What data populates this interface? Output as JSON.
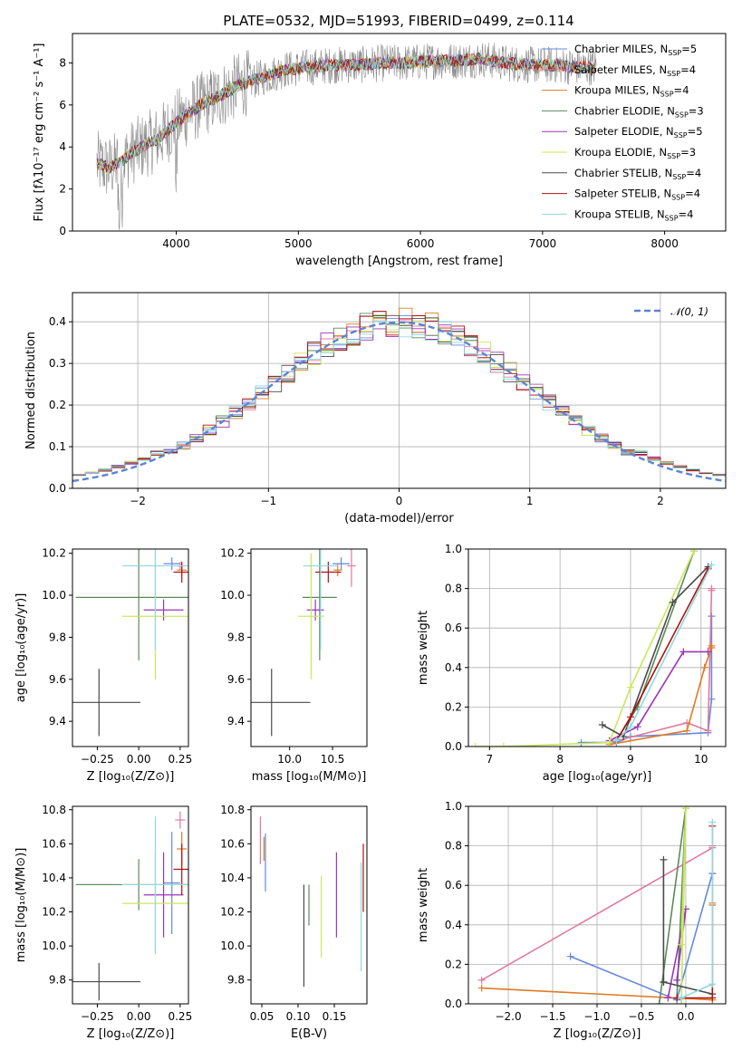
{
  "figure": {
    "title": "PLATE=0532, MJD=51993, FIBERID=0499, z=0.114"
  },
  "colors": {
    "models": [
      "#6688dd",
      "#e07a9c",
      "#e07b22",
      "#5a8a5a",
      "#9a35b8",
      "#c8e85a",
      "#4a4a4a",
      "#b01010",
      "#8fd8e0"
    ],
    "model_keys": [
      "chabrier_miles",
      "salpeter_miles",
      "kroupa_miles",
      "chabrier_elodie",
      "salpeter_elodie",
      "kroupa_elodie",
      "chabrier_stelib",
      "salpeter_stelib",
      "kroupa_stelib"
    ]
  },
  "chart_data": [
    {
      "id": "spectrum",
      "type": "line",
      "xlabel": "wavelength [Angstrom, rest frame]",
      "ylabel": "Flux [fλ10⁻¹⁷ erg cm⁻² s⁻¹ A⁻¹]",
      "xlim": [
        3150,
        8500
      ],
      "ylim": [
        0,
        9.4
      ],
      "xticks": [
        "4000",
        "5000",
        "6000",
        "7000",
        "8000"
      ],
      "yticks": [
        "0",
        "2",
        "4",
        "6",
        "8"
      ],
      "x": [
        3350,
        3450,
        3550,
        3650,
        3750,
        3850,
        3950,
        4050,
        4200,
        4350,
        4500,
        4700,
        4900,
        5100,
        5300,
        5500,
        5700,
        5900,
        6100,
        6300,
        6500,
        6700,
        6900,
        7100,
        7300,
        7400
      ],
      "y": [
        3.2,
        3.0,
        3.3,
        3.8,
        4.1,
        4.4,
        4.9,
        5.4,
        6.0,
        6.4,
        6.9,
        7.3,
        7.7,
        7.8,
        7.9,
        7.9,
        8.0,
        8.0,
        8.1,
        8.1,
        8.2,
        8.0,
        7.9,
        7.9,
        7.8,
        7.8
      ],
      "legend": [
        {
          "name": "Chabrier MILES",
          "nssp": "5"
        },
        {
          "name": "Salpeter MILES",
          "nssp": "4"
        },
        {
          "name": "Kroupa MILES",
          "nssp": "4"
        },
        {
          "name": "Chabrier ELODIE",
          "nssp": "3"
        },
        {
          "name": "Salpeter ELODIE",
          "nssp": "5"
        },
        {
          "name": "Kroupa ELODIE",
          "nssp": "3"
        },
        {
          "name": "Chabrier STELIB",
          "nssp": "4"
        },
        {
          "name": "Salpeter STELIB",
          "nssp": "4"
        },
        {
          "name": "Kroupa STELIB",
          "nssp": "4"
        }
      ],
      "legend_prefix": "N",
      "legend_sub": "SSP",
      "legend_placement": "right"
    },
    {
      "id": "residuals",
      "type": "bar",
      "xlabel": "(data-model)/error",
      "ylabel": "Normed distribution",
      "xlim": [
        -2.5,
        2.5
      ],
      "ylim": [
        0,
        0.47
      ],
      "xticks": [
        "−2",
        "−1",
        "0",
        "1",
        "2"
      ],
      "yticks": [
        "0.0",
        "0.1",
        "0.2",
        "0.3",
        "0.4"
      ],
      "reference_label": "𝒩(0, 1)",
      "reference_mean": 0,
      "reference_sigma": 1,
      "grid": true,
      "legend_placement": "top-right"
    },
    {
      "id": "age_vs_Z",
      "type": "scatter",
      "xlabel": "Z [log₁₀(Z/Z⊙)]",
      "ylabel": "age  [log₁₀(age/yr)]",
      "xlim": [
        -0.4,
        0.3
      ],
      "ylim": [
        9.28,
        10.22
      ],
      "xticks": [
        "−0.25",
        "0.00",
        "0.25"
      ],
      "yticks": [
        "9.4",
        "9.6",
        "9.8",
        "10.0",
        "10.2"
      ],
      "points": [
        {
          "x": 0.2,
          "y": 10.15,
          "xerr": 0.05,
          "yerr": 0.03
        },
        {
          "x": 0.25,
          "y": 10.14,
          "xerr": 0.03,
          "yerr": 0.02
        },
        {
          "x": 0.26,
          "y": 10.12,
          "xerr": 0.03,
          "yerr": 0.03
        },
        {
          "x": 0.0,
          "y": 9.99,
          "xerr": 0.38,
          "yerr": 0.3
        },
        {
          "x": 0.15,
          "y": 9.93,
          "xerr": 0.12,
          "yerr": 0.05
        },
        {
          "x": 0.1,
          "y": 9.9,
          "xerr": 0.2,
          "yerr": 0.3
        },
        {
          "x": -0.24,
          "y": 9.49,
          "xerr": 0.25,
          "yerr": 0.16
        },
        {
          "x": 0.26,
          "y": 10.11,
          "xerr": 0.05,
          "yerr": 0.05
        },
        {
          "x": 0.1,
          "y": 10.14,
          "xerr": 0.2,
          "yerr": 0.4
        }
      ]
    },
    {
      "id": "age_vs_mass",
      "type": "scatter",
      "xlabel": "mass [log₁₀(M/M⊙)]",
      "ylabel": "",
      "xlim": [
        9.55,
        10.9
      ],
      "ylim": [
        9.28,
        10.22
      ],
      "xticks": [
        "10.0",
        "10.5"
      ],
      "yticks": [
        "9.4",
        "9.6",
        "9.8",
        "10.0",
        "10.2"
      ],
      "points": [
        {
          "x": 10.6,
          "y": 10.15,
          "xerr": 0.1,
          "yerr": 0.03
        },
        {
          "x": 10.72,
          "y": 10.14,
          "xerr": 0.05,
          "yerr": 0.1
        },
        {
          "x": 10.56,
          "y": 10.12,
          "xerr": 0.05,
          "yerr": 0.03
        },
        {
          "x": 10.35,
          "y": 9.99,
          "xerr": 0.2,
          "yerr": 0.3
        },
        {
          "x": 10.3,
          "y": 9.93,
          "xerr": 0.1,
          "yerr": 0.05
        },
        {
          "x": 10.25,
          "y": 9.9,
          "xerr": 0.15,
          "yerr": 0.3
        },
        {
          "x": 9.79,
          "y": 9.49,
          "xerr": 0.45,
          "yerr": 0.16
        },
        {
          "x": 10.45,
          "y": 10.11,
          "xerr": 0.15,
          "yerr": 0.05
        },
        {
          "x": 10.36,
          "y": 10.14,
          "xerr": 0.2,
          "yerr": 0.4
        }
      ]
    },
    {
      "id": "weight_vs_age",
      "type": "line",
      "xlabel": "age  [log₁₀(age/yr)]",
      "ylabel": "mass weight",
      "xlim": [
        6.7,
        10.35
      ],
      "ylim": [
        0,
        1
      ],
      "xticks": [
        "7",
        "8",
        "9",
        "10"
      ],
      "yticks": [
        "0.0",
        "0.2",
        "0.4",
        "0.6",
        "0.8",
        "1.0"
      ],
      "grid": true,
      "series": [
        {
          "x": [
            8.3,
            8.8,
            9.0,
            10.1,
            10.15,
            10.15
          ],
          "y": [
            0.02,
            0.02,
            0.05,
            0.07,
            0.24,
            0.66
          ]
        },
        {
          "x": [
            8.7,
            9.8,
            10.1,
            10.15,
            10.15
          ],
          "y": [
            0.02,
            0.12,
            0.08,
            0.79,
            0.8
          ]
        },
        {
          "x": [
            8.7,
            9.8,
            10.05,
            10.15,
            10.15
          ],
          "y": [
            0.01,
            0.08,
            0.4,
            0.5,
            0.51
          ]
        },
        {
          "x": [
            8.8,
            9.1,
            9.9
          ],
          "y": [
            0.03,
            0.2,
            0.99
          ]
        },
        {
          "x": [
            8.7,
            9.1,
            9.75,
            10.1
          ],
          "y": [
            0.03,
            0.1,
            0.48,
            0.48
          ]
        },
        {
          "x": [
            6.8,
            7.2,
            8.7,
            9.0,
            9.9
          ],
          "y": [
            0.0,
            0.0,
            0.02,
            0.3,
            0.99
          ]
        },
        {
          "x": [
            8.6,
            8.9,
            9.6,
            10.1
          ],
          "y": [
            0.11,
            0.05,
            0.73,
            0.91
          ]
        },
        {
          "x": [
            8.8,
            9.0,
            10.1
          ],
          "y": [
            0.03,
            0.15,
            0.9
          ]
        },
        {
          "x": [
            8.8,
            9.0,
            10.15
          ],
          "y": [
            0.03,
            0.1,
            0.92
          ]
        }
      ]
    },
    {
      "id": "mass_vs_Z",
      "type": "scatter",
      "xlabel": "Z [log₁₀(Z/Z⊙)]",
      "ylabel": "mass [log₁₀(M/M⊙)]",
      "xlim": [
        -0.4,
        0.3
      ],
      "ylim": [
        9.66,
        10.82
      ],
      "xticks": [
        "−0.25",
        "0.00",
        "0.25"
      ],
      "yticks": [
        "9.8",
        "10.0",
        "10.2",
        "10.4",
        "10.6",
        "10.8"
      ],
      "points": [
        {
          "x": 0.2,
          "y": 10.37,
          "xerr": 0.05,
          "yerr": 0.3
        },
        {
          "x": 0.25,
          "y": 10.74,
          "xerr": 0.03,
          "yerr": 0.05
        },
        {
          "x": 0.26,
          "y": 10.57,
          "xerr": 0.03,
          "yerr": 0.1
        },
        {
          "x": 0.0,
          "y": 10.36,
          "xerr": 0.38,
          "yerr": 0.15
        },
        {
          "x": 0.15,
          "y": 10.3,
          "xerr": 0.12,
          "yerr": 0.25
        },
        {
          "x": 0.1,
          "y": 10.25,
          "xerr": 0.2,
          "yerr": 0.3
        },
        {
          "x": -0.24,
          "y": 9.79,
          "xerr": 0.25,
          "yerr": 0.11
        },
        {
          "x": 0.26,
          "y": 10.45,
          "xerr": 0.05,
          "yerr": 0.15
        },
        {
          "x": 0.1,
          "y": 10.36,
          "xerr": 0.2,
          "yerr": 0.4
        }
      ]
    },
    {
      "id": "mass_vs_EBV",
      "type": "scatter",
      "xlabel": "E(B-V)",
      "ylabel": "",
      "xlim": [
        0.035,
        0.195
      ],
      "ylim": [
        9.66,
        10.82
      ],
      "xticks": [
        "0.05",
        "0.10",
        "0.15"
      ],
      "yticks": [
        "9.8",
        "10.0",
        "10.2",
        "10.4",
        "10.6",
        "10.8"
      ],
      "points": [
        {
          "x": 0.055,
          "y": 10.49,
          "yerr": 0.17
        },
        {
          "x": 0.048,
          "y": 10.62,
          "yerr": 0.14
        },
        {
          "x": 0.053,
          "y": 10.57,
          "yerr": 0.07
        },
        {
          "x": 0.115,
          "y": 10.24,
          "yerr": 0.12
        },
        {
          "x": 0.153,
          "y": 10.3,
          "yerr": 0.25
        },
        {
          "x": 0.132,
          "y": 10.17,
          "yerr": 0.24
        },
        {
          "x": 0.108,
          "y": 10.06,
          "yerr": 0.3
        },
        {
          "x": 0.19,
          "y": 10.4,
          "yerr": 0.2
        },
        {
          "x": 0.187,
          "y": 10.17,
          "yerr": 0.32
        }
      ]
    },
    {
      "id": "weight_vs_Z",
      "type": "line",
      "xlabel": "Z [log₁₀(Z/Z⊙)]",
      "ylabel": "mass weight",
      "xlim": [
        -2.45,
        0.45
      ],
      "ylim": [
        0,
        1
      ],
      "xticks": [
        "−2.0",
        "−1.5",
        "−1.0",
        "−0.5",
        "0.0"
      ],
      "yticks": [
        "0.0",
        "0.2",
        "0.4",
        "0.6",
        "0.8",
        "1.0"
      ],
      "grid": true,
      "series": [
        {
          "x": [
            -1.3,
            -0.1,
            0.3,
            0.3
          ],
          "y": [
            0.24,
            0.02,
            0.66,
            0.66
          ]
        },
        {
          "x": [
            -2.3,
            0.3,
            0.3
          ],
          "y": [
            0.12,
            0.79,
            0.8
          ]
        },
        {
          "x": [
            -2.3,
            0.3,
            0.3,
            0.3
          ],
          "y": [
            0.08,
            0.02,
            0.5,
            0.51
          ]
        },
        {
          "x": [
            -0.3,
            0.0,
            -0.1
          ],
          "y": [
            0.0,
            0.99,
            0.03
          ]
        },
        {
          "x": [
            -0.2,
            0.0,
            -0.1
          ],
          "y": [
            0.03,
            0.48,
            0.12
          ]
        },
        {
          "x": [
            -0.05,
            0.0,
            -0.05
          ],
          "y": [
            0.0,
            0.99,
            0.3
          ]
        },
        {
          "x": [
            -0.25,
            0.3,
            -0.25,
            -0.25
          ],
          "y": [
            0.11,
            0.05,
            0.11,
            0.73
          ]
        },
        {
          "x": [
            -0.1,
            0.3,
            0.3
          ],
          "y": [
            0.03,
            0.03,
            0.9
          ]
        },
        {
          "x": [
            -0.05,
            0.3,
            0.3
          ],
          "y": [
            0.03,
            0.1,
            0.92
          ]
        }
      ]
    }
  ]
}
